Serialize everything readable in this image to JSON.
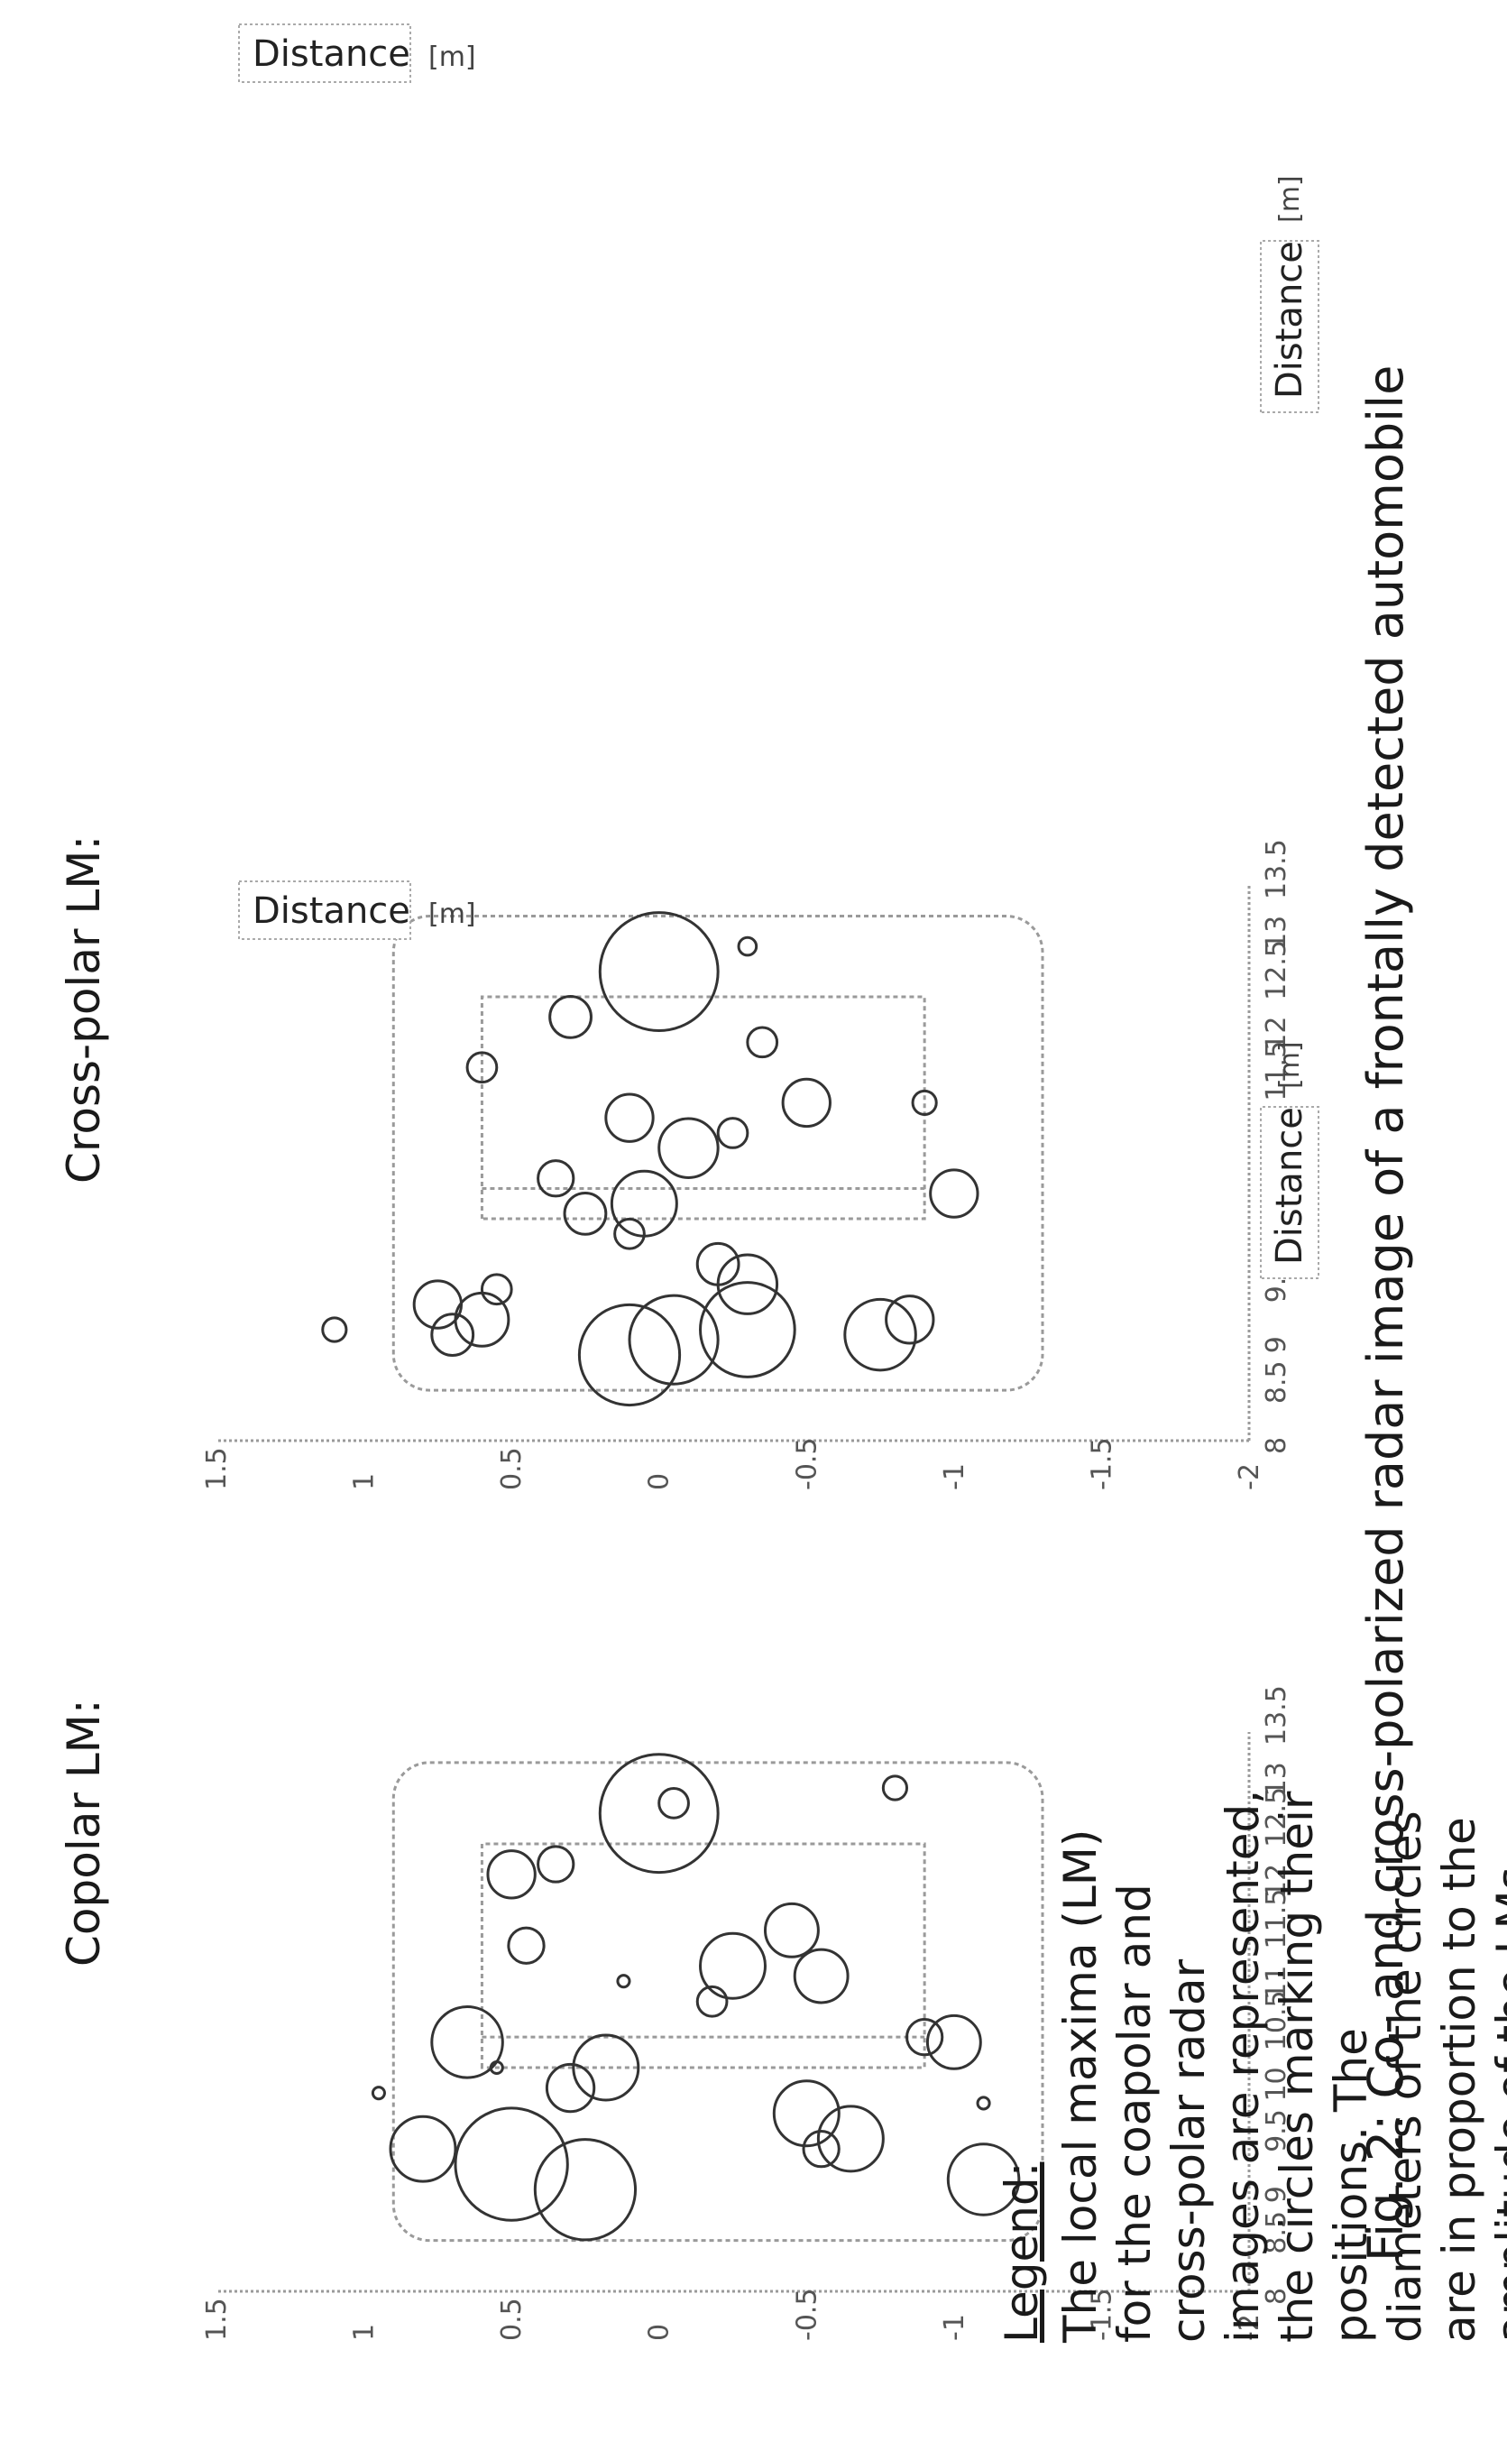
{
  "caption": "Fig. 2: Co- and cross-polarized radar image of a frontally detected automobile",
  "legend": {
    "title": "Legend:",
    "lines": [
      "The local maxima (LM)",
      "for the coapolar and",
      "cross-polar radar",
      "images are represented,",
      "the circles marking their",
      "positions. The",
      "diameters of the circles",
      "are in proportion to the",
      "amplitude of the LMs."
    ]
  },
  "chart_data": [
    {
      "type": "scatter",
      "title": "Copolar LM:",
      "xlabel": "Distance",
      "xunit": "[m]",
      "ylabel": "Distance",
      "yunit": "[m]",
      "xlim": [
        -2,
        1.5
      ],
      "ylim": [
        8,
        13.5
      ],
      "xticks": [
        "-2",
        "-1.5",
        "-1",
        "-0.5",
        "0",
        "0.5",
        "1",
        "1.5"
      ],
      "yticks": [
        "8",
        "8.5",
        "9",
        "9.5",
        "10",
        "10.5",
        "11",
        "11.5",
        "12",
        "12.5",
        "13",
        "13.5"
      ],
      "points": [
        {
          "x": -0.8,
          "y": 12.95,
          "r": 0.04
        },
        {
          "x": -0.05,
          "y": 12.8,
          "r": 0.05
        },
        {
          "x": 0.0,
          "y": 12.7,
          "r": 0.2
        },
        {
          "x": 0.35,
          "y": 12.2,
          "r": 0.06
        },
        {
          "x": 0.5,
          "y": 12.1,
          "r": 0.08
        },
        {
          "x": 0.45,
          "y": 11.4,
          "r": 0.06
        },
        {
          "x": -0.45,
          "y": 11.55,
          "r": 0.09
        },
        {
          "x": -0.25,
          "y": 11.2,
          "r": 0.11
        },
        {
          "x": -0.55,
          "y": 11.1,
          "r": 0.09
        },
        {
          "x": 0.12,
          "y": 11.05,
          "r": 0.02
        },
        {
          "x": -0.18,
          "y": 10.85,
          "r": 0.05
        },
        {
          "x": -0.9,
          "y": 10.5,
          "r": 0.06
        },
        {
          "x": -1.0,
          "y": 10.45,
          "r": 0.09
        },
        {
          "x": 0.65,
          "y": 10.45,
          "r": 0.12
        },
        {
          "x": 0.18,
          "y": 10.2,
          "r": 0.11
        },
        {
          "x": 0.3,
          "y": 10.0,
          "r": 0.08
        },
        {
          "x": 0.55,
          "y": 10.2,
          "r": 0.02
        },
        {
          "x": -1.1,
          "y": 9.85,
          "r": 0.02
        },
        {
          "x": 0.95,
          "y": 9.95,
          "r": 0.02
        },
        {
          "x": -0.5,
          "y": 9.75,
          "r": 0.11
        },
        {
          "x": -0.65,
          "y": 9.5,
          "r": 0.11
        },
        {
          "x": -0.55,
          "y": 9.4,
          "r": 0.06
        },
        {
          "x": 0.8,
          "y": 9.4,
          "r": 0.11
        },
        {
          "x": 0.5,
          "y": 9.25,
          "r": 0.19
        },
        {
          "x": 0.25,
          "y": 9.0,
          "r": 0.17
        },
        {
          "x": -1.1,
          "y": 9.1,
          "r": 0.12
        }
      ]
    },
    {
      "type": "scatter",
      "title": "Cross-polar LM:",
      "xlabel": "Distance",
      "xunit": "[m]",
      "ylabel": "Distance",
      "yunit": "[m]",
      "xlim": [
        -2,
        1.5
      ],
      "ylim": [
        8,
        13.5
      ],
      "xticks": [
        "-2",
        "-1.5",
        "-1",
        "-0.5",
        "0",
        "0.5",
        "1",
        "1.5"
      ],
      "yticks": [
        "8",
        "8.5",
        "9",
        "9.5",
        "10",
        "10.5",
        "11",
        "11.5",
        "12",
        "12.5",
        "13",
        "13.5"
      ],
      "points": [
        {
          "x": -0.3,
          "y": 12.9,
          "r": 0.03
        },
        {
          "x": 0.0,
          "y": 12.65,
          "r": 0.2
        },
        {
          "x": 0.3,
          "y": 12.2,
          "r": 0.07
        },
        {
          "x": -0.35,
          "y": 11.95,
          "r": 0.05
        },
        {
          "x": 0.6,
          "y": 11.7,
          "r": 0.05
        },
        {
          "x": -0.5,
          "y": 11.35,
          "r": 0.08
        },
        {
          "x": -0.9,
          "y": 11.35,
          "r": 0.04
        },
        {
          "x": 0.1,
          "y": 11.2,
          "r": 0.08
        },
        {
          "x": -0.25,
          "y": 11.05,
          "r": 0.05
        },
        {
          "x": -0.1,
          "y": 10.9,
          "r": 0.1
        },
        {
          "x": 0.35,
          "y": 10.6,
          "r": 0.06
        },
        {
          "x": 0.05,
          "y": 10.35,
          "r": 0.11
        },
        {
          "x": 0.25,
          "y": 10.25,
          "r": 0.07
        },
        {
          "x": 0.1,
          "y": 10.05,
          "r": 0.05
        },
        {
          "x": -1.0,
          "y": 10.45,
          "r": 0.08
        },
        {
          "x": -0.2,
          "y": 9.75,
          "r": 0.07
        },
        {
          "x": -0.3,
          "y": 9.55,
          "r": 0.1
        },
        {
          "x": 0.55,
          "y": 9.5,
          "r": 0.05
        },
        {
          "x": 0.75,
          "y": 9.35,
          "r": 0.08
        },
        {
          "x": 0.6,
          "y": 9.2,
          "r": 0.09
        },
        {
          "x": 0.7,
          "y": 9.05,
          "r": 0.07
        },
        {
          "x": -0.3,
          "y": 9.1,
          "r": 0.16
        },
        {
          "x": -0.05,
          "y": 9.0,
          "r": 0.15
        },
        {
          "x": 0.1,
          "y": 8.85,
          "r": 0.17
        },
        {
          "x": -0.75,
          "y": 9.05,
          "r": 0.12
        },
        {
          "x": -0.85,
          "y": 9.2,
          "r": 0.08
        },
        {
          "x": 1.1,
          "y": 9.1,
          "r": 0.04
        }
      ]
    }
  ]
}
